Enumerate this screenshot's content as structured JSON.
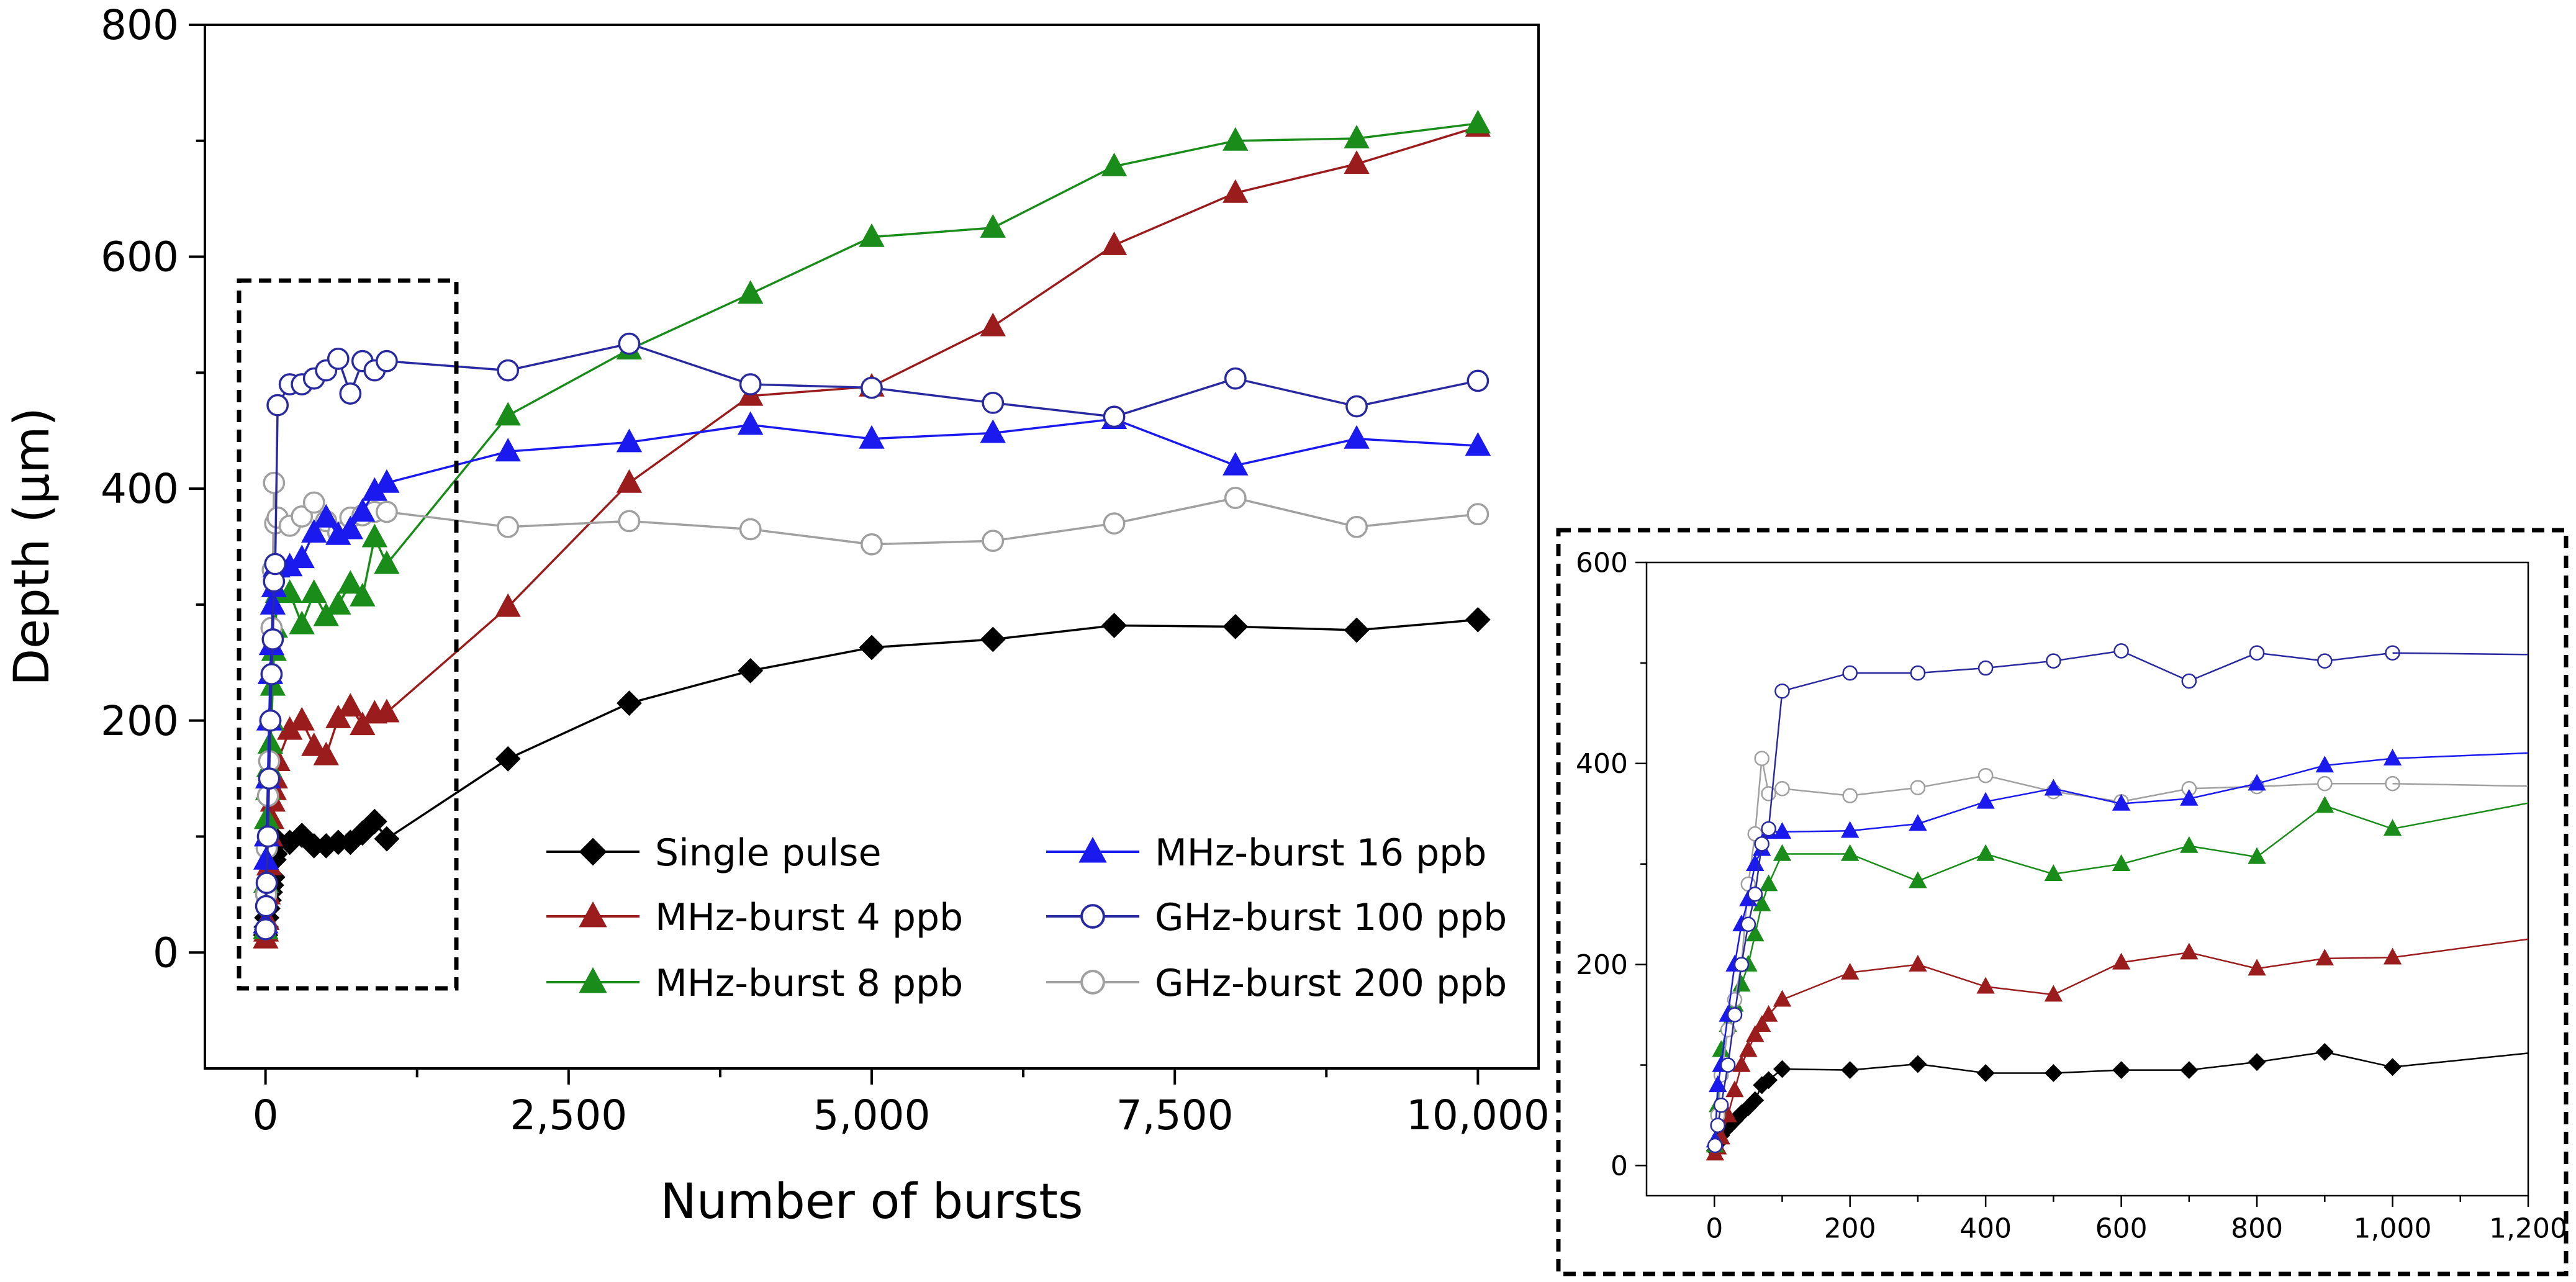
{
  "chart_data": [
    {
      "type": "line",
      "role": "main",
      "xlabel": "Number of bursts",
      "ylabel": "Depth (µm)",
      "xlim": [
        -500,
        10500
      ],
      "ylim": [
        -100,
        800
      ],
      "xticks": [
        0,
        2500,
        5000,
        7500,
        10000
      ],
      "xtick_labels": [
        "0",
        "2,500",
        "5,000",
        "7,500",
        "10,000"
      ],
      "yticks": [
        0,
        200,
        400,
        600,
        800
      ],
      "ytick_labels": [
        "0",
        "200",
        "400",
        "600",
        "800"
      ],
      "legend_position": "lower-right",
      "series": [
        {
          "name": "Single pulse",
          "color": "#000000",
          "marker": "diamond",
          "filled": true,
          "x": [
            1,
            5,
            10,
            20,
            30,
            40,
            50,
            60,
            70,
            80,
            100,
            200,
            300,
            400,
            500,
            600,
            700,
            800,
            900,
            1000,
            2000,
            3000,
            4000,
            5000,
            6000,
            7000,
            8000,
            9000,
            10000
          ],
          "y": [
            15,
            22,
            30,
            38,
            45,
            52,
            58,
            65,
            80,
            85,
            96,
            95,
            101,
            92,
            92,
            95,
            95,
            103,
            113,
            98,
            167,
            215,
            243,
            263,
            270,
            282,
            281,
            278,
            287
          ]
        },
        {
          "name": "MHz-burst 4 ppb",
          "color": "#9b1c1c",
          "marker": "triangle",
          "filled": true,
          "x": [
            1,
            5,
            10,
            20,
            30,
            40,
            50,
            60,
            70,
            80,
            100,
            200,
            300,
            400,
            500,
            600,
            700,
            800,
            900,
            1000,
            2000,
            3000,
            4000,
            5000,
            6000,
            7000,
            8000,
            9000,
            10000
          ],
          "y": [
            12,
            18,
            28,
            50,
            75,
            100,
            115,
            130,
            140,
            150,
            165,
            192,
            200,
            178,
            170,
            202,
            212,
            196,
            206,
            207,
            298,
            405,
            480,
            488,
            540,
            610,
            655,
            680,
            712
          ]
        },
        {
          "name": "MHz-burst 8 ppb",
          "color": "#1a8c1a",
          "marker": "triangle",
          "filled": true,
          "x": [
            1,
            5,
            10,
            20,
            30,
            40,
            50,
            60,
            70,
            80,
            100,
            200,
            300,
            400,
            500,
            600,
            700,
            800,
            900,
            1000,
            2000,
            3000,
            4000,
            5000,
            6000,
            7000,
            8000,
            9000,
            10000
          ],
          "y": [
            20,
            60,
            115,
            140,
            160,
            180,
            200,
            230,
            260,
            280,
            310,
            310,
            283,
            310,
            290,
            300,
            318,
            307,
            358,
            335,
            463,
            520,
            568,
            617,
            625,
            678,
            700,
            702,
            715
          ]
        },
        {
          "name": "MHz-burst 16 ppb",
          "color": "#1a1aee",
          "marker": "triangle",
          "filled": true,
          "x": [
            1,
            5,
            10,
            20,
            30,
            40,
            50,
            60,
            70,
            80,
            100,
            200,
            300,
            400,
            500,
            600,
            700,
            800,
            900,
            1000,
            2000,
            3000,
            4000,
            5000,
            6000,
            7000,
            8000,
            9000,
            10000
          ],
          "y": [
            25,
            80,
            100,
            150,
            200,
            240,
            265,
            300,
            315,
            332,
            332,
            333,
            340,
            362,
            375,
            360,
            365,
            380,
            398,
            405,
            432,
            440,
            455,
            443,
            448,
            460,
            420,
            443,
            437
          ]
        },
        {
          "name": "GHz-burst 100 ppb",
          "color": "#2a2aa0",
          "marker": "circle",
          "filled": false,
          "x": [
            1,
            5,
            10,
            20,
            30,
            40,
            50,
            60,
            70,
            80,
            100,
            200,
            300,
            400,
            500,
            600,
            700,
            800,
            900,
            1000,
            2000,
            3000,
            4000,
            5000,
            6000,
            7000,
            8000,
            9000,
            10000
          ],
          "y": [
            20,
            40,
            60,
            100,
            150,
            200,
            240,
            270,
            320,
            335,
            472,
            490,
            490,
            495,
            502,
            512,
            482,
            510,
            502,
            510,
            502,
            525,
            490,
            487,
            474,
            462,
            495,
            471,
            493
          ]
        },
        {
          "name": "GHz-burst 200 ppb",
          "color": "#a0a0a0",
          "marker": "circle",
          "filled": false,
          "x": [
            1,
            5,
            10,
            20,
            30,
            40,
            50,
            60,
            70,
            80,
            100,
            200,
            300,
            400,
            500,
            600,
            700,
            800,
            900,
            1000,
            2000,
            3000,
            4000,
            5000,
            6000,
            7000,
            8000,
            9000,
            10000
          ],
          "y": [
            20,
            50,
            90,
            135,
            165,
            200,
            280,
            330,
            405,
            370,
            375,
            368,
            376,
            388,
            372,
            362,
            375,
            377,
            380,
            380,
            367,
            372,
            365,
            352,
            355,
            370,
            392,
            367,
            378
          ]
        }
      ]
    },
    {
      "type": "line",
      "role": "inset",
      "xlabel": "",
      "ylabel": "",
      "xlim": [
        -100,
        1200
      ],
      "ylim": [
        -30,
        600
      ],
      "xticks": [
        0,
        200,
        400,
        600,
        800,
        1000,
        1200
      ],
      "xtick_labels": [
        "0",
        "200",
        "400",
        "600",
        "800",
        "1,000",
        "1,200"
      ],
      "yticks": [
        0,
        200,
        400,
        600
      ],
      "ytick_labels": [
        "0",
        "200",
        "400",
        "600"
      ]
    }
  ]
}
